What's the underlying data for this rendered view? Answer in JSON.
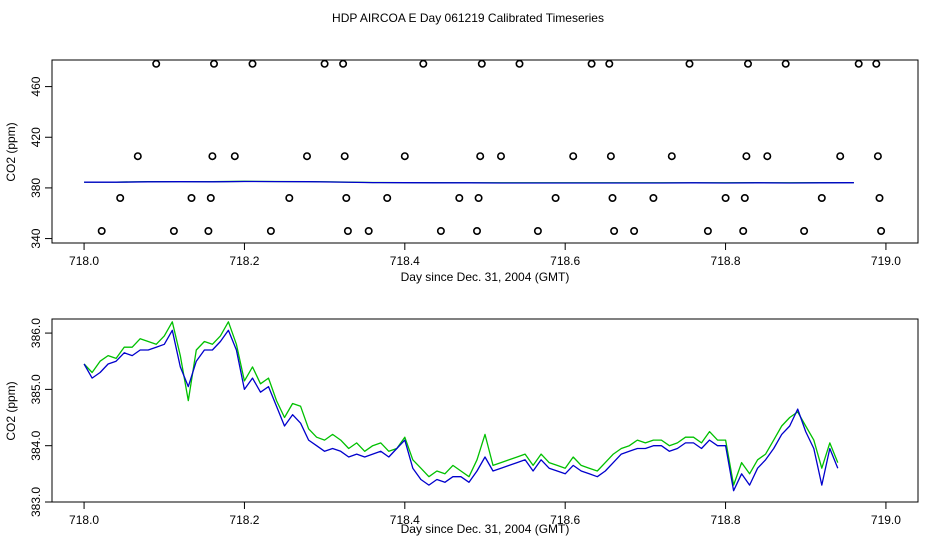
{
  "title": "HDP AIRCOA E  Day 061219  Calibrated Timeseries",
  "colors": {
    "green": "#00c000",
    "blue": "#0000cc",
    "marker": "#000000"
  },
  "chart_data": [
    {
      "type": "scatter",
      "xlabel": "Day since Dec. 31, 2004 (GMT)",
      "ylabel": "CO2 (ppm)",
      "xlim": [
        717.96,
        719.04
      ],
      "ylim": [
        336.5,
        481.0
      ],
      "xticks": [
        "718.0",
        "718.2",
        "718.4",
        "718.6",
        "718.8",
        "719.0"
      ],
      "yticks": [
        "340",
        "380",
        "420",
        "460"
      ],
      "markers": [
        [
          718.022,
          346
        ],
        [
          718.045,
          372
        ],
        [
          718.067,
          405
        ],
        [
          718.09,
          478
        ],
        [
          718.112,
          346
        ],
        [
          718.134,
          372
        ],
        [
          718.155,
          346
        ],
        [
          718.158,
          372
        ],
        [
          718.16,
          405
        ],
        [
          718.162,
          478
        ],
        [
          718.188,
          405
        ],
        [
          718.21,
          478
        ],
        [
          718.233,
          346
        ],
        [
          718.256,
          372
        ],
        [
          718.278,
          405
        ],
        [
          718.3,
          478
        ],
        [
          718.323,
          478
        ],
        [
          718.325,
          405
        ],
        [
          718.327,
          372
        ],
        [
          718.329,
          346
        ],
        [
          718.355,
          346
        ],
        [
          718.378,
          372
        ],
        [
          718.4,
          405
        ],
        [
          718.423,
          478
        ],
        [
          718.445,
          346
        ],
        [
          718.468,
          372
        ],
        [
          718.49,
          346
        ],
        [
          718.492,
          372
        ],
        [
          718.494,
          405
        ],
        [
          718.496,
          478
        ],
        [
          718.52,
          405
        ],
        [
          718.543,
          478
        ],
        [
          718.566,
          346
        ],
        [
          718.588,
          372
        ],
        [
          718.61,
          405
        ],
        [
          718.633,
          478
        ],
        [
          718.655,
          478
        ],
        [
          718.657,
          405
        ],
        [
          718.659,
          372
        ],
        [
          718.661,
          346
        ],
        [
          718.686,
          346
        ],
        [
          718.71,
          372
        ],
        [
          718.733,
          405
        ],
        [
          718.755,
          478
        ],
        [
          718.778,
          346
        ],
        [
          718.8,
          372
        ],
        [
          718.822,
          346
        ],
        [
          718.824,
          372
        ],
        [
          718.826,
          405
        ],
        [
          718.828,
          478
        ],
        [
          718.852,
          405
        ],
        [
          718.875,
          478
        ],
        [
          718.898,
          346
        ],
        [
          718.92,
          372
        ],
        [
          718.943,
          405
        ],
        [
          718.966,
          478
        ],
        [
          718.988,
          478
        ],
        [
          718.99,
          405
        ],
        [
          718.992,
          372
        ],
        [
          718.994,
          346
        ]
      ],
      "series": [
        {
          "color": "green",
          "start": 718.0,
          "step": 0.04,
          "values": [
            384.6,
            384.6,
            384.9,
            385.0,
            384.9,
            385.2,
            385.1,
            385.0,
            384.7,
            384.3,
            384.2,
            384.1,
            384.0,
            384.0,
            384.0,
            384.0,
            384.0,
            384.0,
            384.0,
            384.0,
            384.0,
            384.1,
            384.0,
            384.1,
            384.2
          ]
        },
        {
          "color": "blue",
          "start": 718.0,
          "step": 0.04,
          "values": [
            384.5,
            384.5,
            384.8,
            384.9,
            384.8,
            385.1,
            385.0,
            384.9,
            384.6,
            384.2,
            384.1,
            384.0,
            384.0,
            383.9,
            383.9,
            383.9,
            383.9,
            383.9,
            383.9,
            384.0,
            383.9,
            384.0,
            383.9,
            384.0,
            384.1
          ]
        }
      ]
    },
    {
      "type": "line",
      "xlabel": "Day since Dec. 31, 2004 (GMT)",
      "ylabel": "CO2 (ppm)",
      "xlim": [
        717.96,
        719.04
      ],
      "ylim": [
        383.0,
        386.25
      ],
      "xticks": [
        "718.0",
        "718.2",
        "718.4",
        "718.6",
        "718.8",
        "719.0"
      ],
      "yticks": [
        "383.0",
        "384.0",
        "385.0",
        "386.0"
      ],
      "series": [
        {
          "color": "green",
          "start": 718.0,
          "step": 0.01,
          "values": [
            385.45,
            385.3,
            385.5,
            385.6,
            385.55,
            385.75,
            385.75,
            385.9,
            385.85,
            385.8,
            385.95,
            386.2,
            385.6,
            384.8,
            385.7,
            385.85,
            385.8,
            385.95,
            386.2,
            385.8,
            385.15,
            385.4,
            385.1,
            385.2,
            384.8,
            384.5,
            384.75,
            384.7,
            384.3,
            384.15,
            384.1,
            384.2,
            384.1,
            383.95,
            384.05,
            383.9,
            384.0,
            384.05,
            383.9,
            383.95,
            384.15,
            383.75,
            383.6,
            383.45,
            383.55,
            383.5,
            383.65,
            383.55,
            383.45,
            383.75,
            384.2,
            383.65,
            383.7,
            383.75,
            383.8,
            383.85,
            383.65,
            383.85,
            383.7,
            383.65,
            383.6,
            383.8,
            383.65,
            383.6,
            383.55,
            383.7,
            383.85,
            383.95,
            384.0,
            384.1,
            384.05,
            384.1,
            384.1,
            384.0,
            384.05,
            384.15,
            384.15,
            384.05,
            384.25,
            384.1,
            384.1,
            383.3,
            383.7,
            383.5,
            383.75,
            383.85,
            384.1,
            384.35,
            384.5,
            384.6,
            384.35,
            384.1,
            383.6,
            384.05,
            383.7
          ]
        },
        {
          "color": "blue",
          "start": 718.0,
          "step": 0.01,
          "values": [
            385.45,
            385.2,
            385.3,
            385.45,
            385.5,
            385.65,
            385.6,
            385.7,
            385.7,
            385.75,
            385.8,
            386.05,
            385.4,
            385.05,
            385.5,
            385.7,
            385.7,
            385.85,
            386.05,
            385.7,
            385.0,
            385.2,
            384.95,
            385.05,
            384.7,
            384.35,
            384.55,
            384.4,
            384.1,
            384.0,
            383.9,
            383.95,
            383.9,
            383.8,
            383.85,
            383.8,
            383.85,
            383.9,
            383.8,
            383.95,
            384.1,
            383.6,
            383.4,
            383.3,
            383.4,
            383.35,
            383.45,
            383.45,
            383.35,
            383.55,
            383.8,
            383.55,
            383.6,
            383.65,
            383.7,
            383.75,
            383.55,
            383.75,
            383.6,
            383.55,
            383.5,
            383.65,
            383.55,
            383.5,
            383.45,
            383.55,
            383.7,
            383.85,
            383.9,
            383.95,
            383.95,
            384.0,
            384.0,
            383.9,
            383.95,
            384.05,
            384.05,
            383.95,
            384.1,
            384.0,
            384.0,
            383.2,
            383.5,
            383.3,
            383.6,
            383.75,
            383.95,
            384.2,
            384.35,
            384.65,
            384.25,
            383.95,
            383.3,
            383.95,
            383.6
          ]
        }
      ]
    }
  ]
}
